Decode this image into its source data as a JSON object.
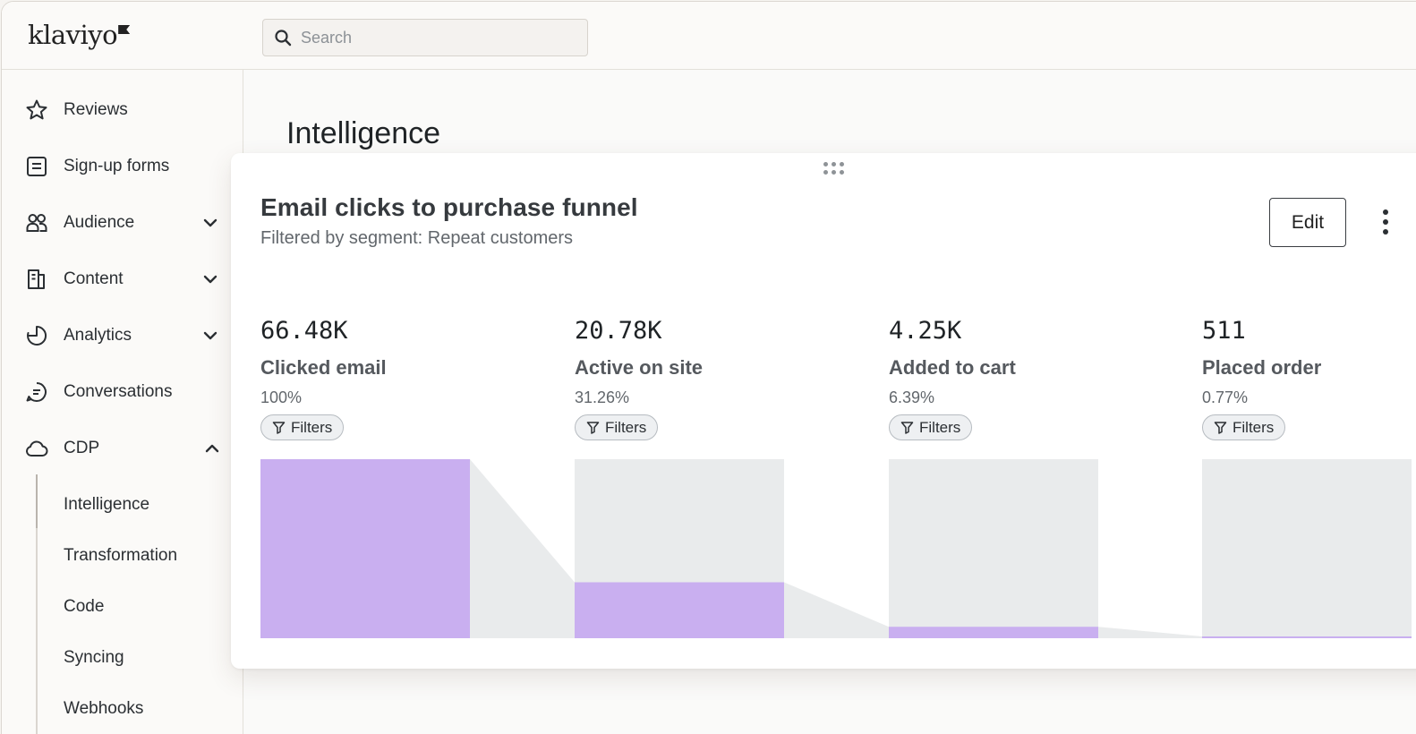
{
  "app": {
    "logo_text": "klaviyo",
    "search": {
      "placeholder": "Search",
      "value": ""
    }
  },
  "sidebar": {
    "items": [
      {
        "label": "Reviews",
        "icon": "star-icon",
        "chevron": null
      },
      {
        "label": "Sign-up forms",
        "icon": "form-icon",
        "chevron": null
      },
      {
        "label": "Audience",
        "icon": "users-icon",
        "chevron": "down"
      },
      {
        "label": "Content",
        "icon": "content-icon",
        "chevron": "down"
      },
      {
        "label": "Analytics",
        "icon": "analytics-icon",
        "chevron": "down"
      },
      {
        "label": "Conversations",
        "icon": "chat-icon",
        "chevron": null
      },
      {
        "label": "CDP",
        "icon": "cloud-icon",
        "chevron": "up"
      }
    ],
    "cdp_subitems": [
      "Intelligence",
      "Transformation",
      "Code",
      "Syncing",
      "Webhooks"
    ],
    "active_subitem": "Intelligence"
  },
  "main": {
    "page_title": "Intelligence",
    "card": {
      "title": "Email clicks to purchase funnel",
      "subtitle": "Filtered by segment: Repeat customers",
      "edit_label": "Edit",
      "filter_label": "Filters"
    }
  },
  "chart_data": {
    "type": "bar",
    "categories": [
      "Clicked email",
      "Active on site",
      "Added to cart",
      "Placed order"
    ],
    "values": [
      66480,
      20780,
      4250,
      511
    ],
    "value_labels": [
      "66.48K",
      "20.78K",
      "4.25K",
      "511"
    ],
    "percentages": [
      "100%",
      "31.26%",
      "6.39%",
      "0.77%"
    ],
    "ylim": [
      0,
      66480
    ],
    "colors": {
      "bar": "#c9aff0",
      "track": "#e9ebec",
      "connector": "#e9ebec"
    }
  },
  "colors": {
    "accent_purple": "#c9aff0",
    "text_primary": "#2b2f33",
    "border": "#e3e0da"
  }
}
